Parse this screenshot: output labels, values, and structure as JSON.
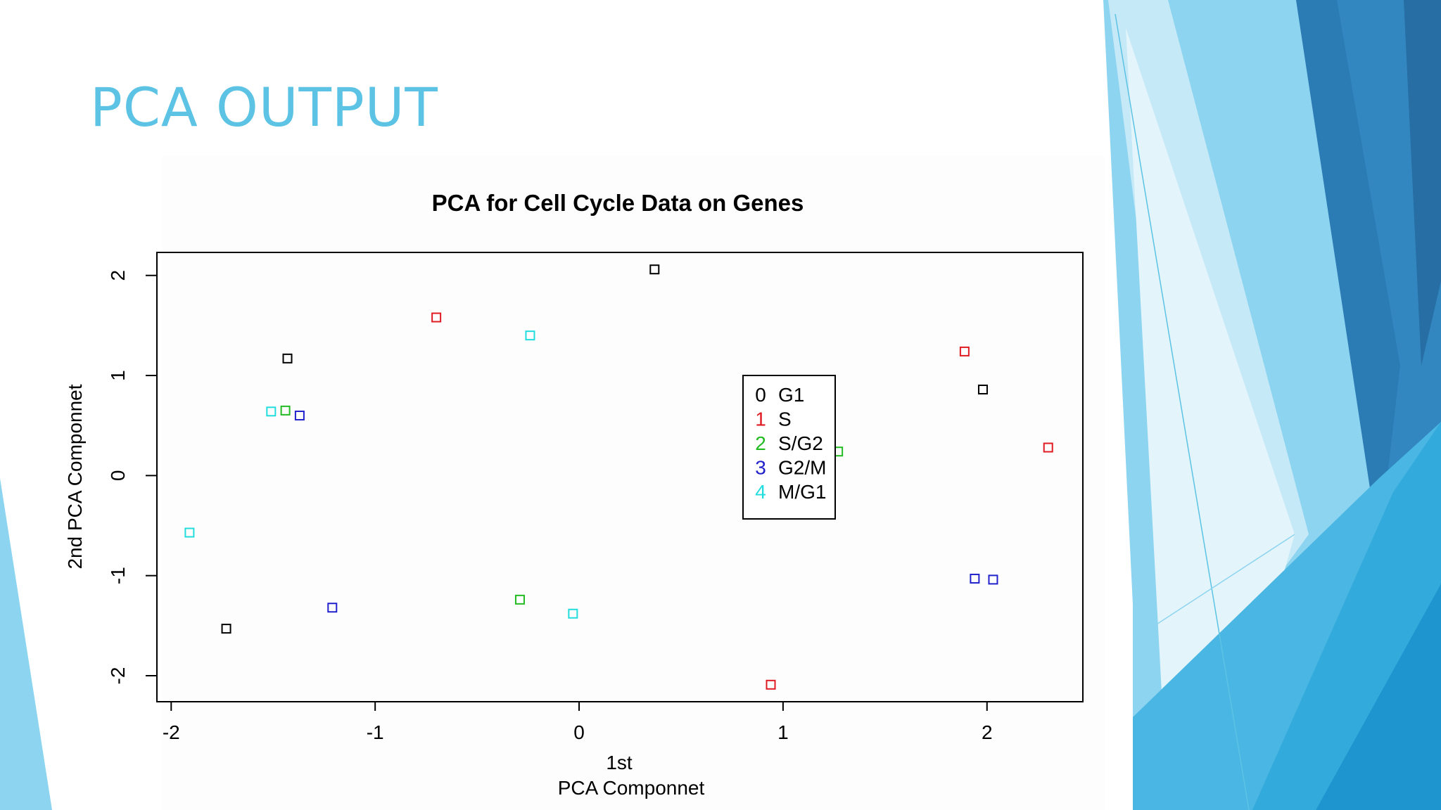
{
  "slide": {
    "title": "PCA OUTPUT",
    "title_color": "#5cc3e4"
  },
  "chart_data": {
    "type": "scatter",
    "title": "PCA for Cell Cycle Data on Genes",
    "xlabel": "1st\nPCA Componnet",
    "ylabel": "2nd PCA Componnet",
    "xlim": [
      -2.07,
      2.47
    ],
    "ylim": [
      -2.26,
      2.23
    ],
    "xticks": [
      -2,
      -1,
      0,
      1,
      2
    ],
    "xtick_labels": [
      "-2",
      "-1",
      "0",
      "1",
      "2"
    ],
    "yticks": [
      -2,
      -1,
      0,
      1,
      2
    ],
    "ytick_labels": [
      "-2",
      "-1",
      "0",
      "1",
      "2"
    ],
    "grid": false,
    "marker": "open-square",
    "legend_position": "center-right",
    "series": [
      {
        "code": "0",
        "name": "G1",
        "color": "#000000",
        "x": [
          0.37,
          -1.43,
          1.98,
          -1.73
        ],
        "y": [
          2.06,
          1.17,
          0.86,
          -1.53
        ]
      },
      {
        "code": "1",
        "name": "S",
        "color": "#df1c24",
        "x": [
          -0.7,
          1.89,
          2.3,
          0.94
        ],
        "y": [
          1.58,
          1.24,
          0.28,
          -2.09
        ]
      },
      {
        "code": "2",
        "name": "S/G2",
        "color": "#22bb22",
        "x": [
          -1.44,
          1.27,
          -0.29
        ],
        "y": [
          0.65,
          0.24,
          -1.24
        ]
      },
      {
        "code": "3",
        "name": "G2/M",
        "color": "#2222cc",
        "x": [
          -1.37,
          -1.21,
          1.94,
          2.03
        ],
        "y": [
          0.6,
          -1.32,
          -1.03,
          -1.04
        ]
      },
      {
        "code": "4",
        "name": "M/G1",
        "color": "#22dddd",
        "x": [
          -0.24,
          -1.51,
          -1.91,
          -0.03
        ],
        "y": [
          1.4,
          0.64,
          -0.57,
          -1.38
        ]
      }
    ]
  }
}
